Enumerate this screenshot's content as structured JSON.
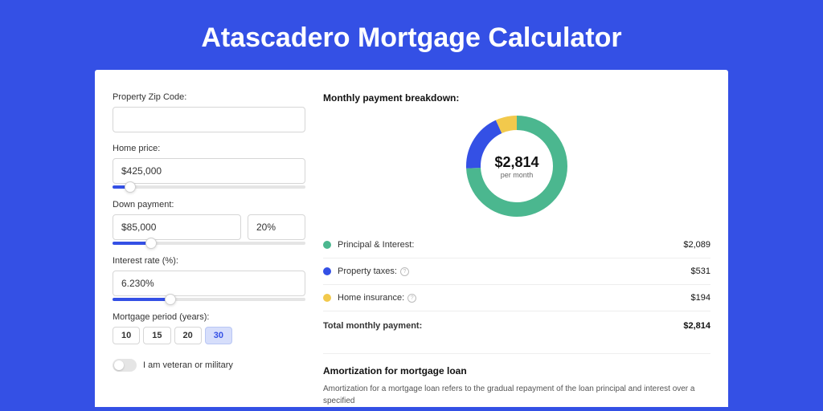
{
  "title": "Atascadero Mortgage Calculator",
  "form": {
    "zip": {
      "label": "Property Zip Code:",
      "value": ""
    },
    "home_price": {
      "label": "Home price:",
      "value": "$425,000",
      "slider_pct": 9
    },
    "down_payment": {
      "label": "Down payment:",
      "amount": "$85,000",
      "percent": "20%",
      "slider_pct": 20
    },
    "interest_rate": {
      "label": "Interest rate (%):",
      "value": "6.230%",
      "slider_pct": 30
    },
    "period": {
      "label": "Mortgage period (years):",
      "options": [
        "10",
        "15",
        "20",
        "30"
      ],
      "selected": "30"
    },
    "veteran": {
      "label": "I am veteran or military",
      "checked": false
    }
  },
  "breakdown": {
    "title": "Monthly payment breakdown:",
    "center_amount": "$2,814",
    "center_sub": "per month",
    "donut": {
      "segments": [
        {
          "color": "#4bb78f",
          "pct": 74.2
        },
        {
          "color": "#3450e5",
          "pct": 18.9
        },
        {
          "color": "#f2c94c",
          "pct": 6.9
        }
      ],
      "stroke_width": 18,
      "bg": "#ffffff"
    },
    "items": [
      {
        "color": "#4bb78f",
        "label": "Principal & Interest:",
        "info": false,
        "value": "$2,089"
      },
      {
        "color": "#3450e5",
        "label": "Property taxes:",
        "info": true,
        "value": "$531"
      },
      {
        "color": "#f2c94c",
        "label": "Home insurance:",
        "info": true,
        "value": "$194"
      }
    ],
    "total": {
      "label": "Total monthly payment:",
      "value": "$2,814"
    }
  },
  "amortization": {
    "title": "Amortization for mortgage loan",
    "text": "Amortization for a mortgage loan refers to the gradual repayment of the loan principal and interest over a specified"
  }
}
